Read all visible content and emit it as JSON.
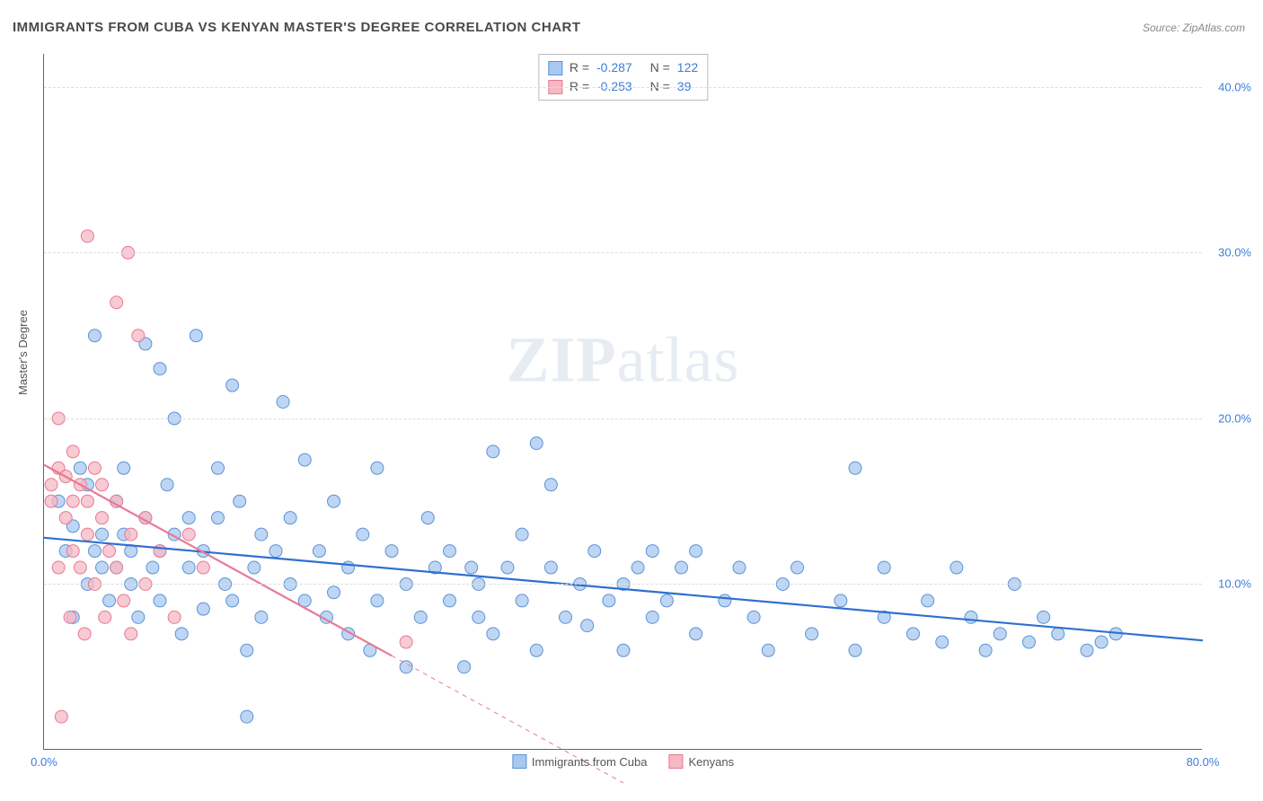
{
  "title": "IMMIGRANTS FROM CUBA VS KENYAN MASTER'S DEGREE CORRELATION CHART",
  "source_label": "Source:",
  "source_name": "ZipAtlas.com",
  "watermark_bold": "ZIP",
  "watermark_light": "atlas",
  "y_axis_title": "Master's Degree",
  "chart": {
    "type": "scatter",
    "xlim": [
      0,
      80
    ],
    "ylim": [
      0,
      42
    ],
    "x_ticks": [
      0,
      80
    ],
    "x_tick_labels": [
      "0.0%",
      "80.0%"
    ],
    "y_ticks": [
      10,
      20,
      30,
      40
    ],
    "y_tick_labels": [
      "10.0%",
      "20.0%",
      "30.0%",
      "40.0%"
    ],
    "background_color": "#ffffff",
    "grid_color": "#dddddd",
    "axis_color": "#666666",
    "tick_label_color": "#3b7dd8",
    "series": [
      {
        "name": "Immigrants from Cuba",
        "marker_fill": "#a8c8ef",
        "marker_stroke": "#5b93d8",
        "marker_opacity": 0.75,
        "marker_radius": 7,
        "line_color": "#2f6fd0",
        "line_width": 2.2,
        "R": "-0.287",
        "N": "122",
        "regression": {
          "x1": 0,
          "y1": 12.8,
          "x2": 80,
          "y2": 6.6
        },
        "points": [
          [
            1,
            15
          ],
          [
            1.5,
            12
          ],
          [
            2,
            8
          ],
          [
            2,
            13.5
          ],
          [
            2.5,
            17
          ],
          [
            3,
            10
          ],
          [
            3,
            16
          ],
          [
            3.5,
            12
          ],
          [
            3.5,
            25
          ],
          [
            4,
            11
          ],
          [
            4,
            13
          ],
          [
            4.5,
            9
          ],
          [
            5,
            11
          ],
          [
            5,
            15
          ],
          [
            5.5,
            17
          ],
          [
            5.5,
            13
          ],
          [
            6,
            10
          ],
          [
            6,
            12
          ],
          [
            6.5,
            8
          ],
          [
            7,
            14
          ],
          [
            7,
            24.5
          ],
          [
            7.5,
            11
          ],
          [
            8,
            9
          ],
          [
            8,
            12
          ],
          [
            8,
            23
          ],
          [
            8.5,
            16
          ],
          [
            9,
            13
          ],
          [
            9,
            20
          ],
          [
            9.5,
            7
          ],
          [
            10,
            14
          ],
          [
            10,
            11
          ],
          [
            10.5,
            25
          ],
          [
            11,
            8.5
          ],
          [
            11,
            12
          ],
          [
            12,
            14
          ],
          [
            12,
            17
          ],
          [
            12.5,
            10
          ],
          [
            13,
            22
          ],
          [
            13,
            9
          ],
          [
            13.5,
            15
          ],
          [
            14,
            2
          ],
          [
            14,
            6
          ],
          [
            14.5,
            11
          ],
          [
            15,
            8
          ],
          [
            15,
            13
          ],
          [
            16,
            12
          ],
          [
            16.5,
            21
          ],
          [
            17,
            10
          ],
          [
            17,
            14
          ],
          [
            18,
            17.5
          ],
          [
            18,
            9
          ],
          [
            19,
            12
          ],
          [
            19.5,
            8
          ],
          [
            20,
            9.5
          ],
          [
            20,
            15
          ],
          [
            21,
            7
          ],
          [
            21,
            11
          ],
          [
            22,
            13
          ],
          [
            22.5,
            6
          ],
          [
            23,
            17
          ],
          [
            23,
            9
          ],
          [
            24,
            12
          ],
          [
            25,
            5
          ],
          [
            25,
            10
          ],
          [
            26,
            8
          ],
          [
            26.5,
            14
          ],
          [
            27,
            11
          ],
          [
            28,
            9
          ],
          [
            28,
            12
          ],
          [
            29,
            5
          ],
          [
            29.5,
            11
          ],
          [
            30,
            8
          ],
          [
            30,
            10
          ],
          [
            31,
            18
          ],
          [
            31,
            7
          ],
          [
            32,
            11
          ],
          [
            33,
            13
          ],
          [
            33,
            9
          ],
          [
            34,
            18.5
          ],
          [
            34,
            6
          ],
          [
            35,
            11
          ],
          [
            35,
            16
          ],
          [
            36,
            8
          ],
          [
            37,
            10
          ],
          [
            37.5,
            7.5
          ],
          [
            38,
            12
          ],
          [
            39,
            9
          ],
          [
            40,
            10
          ],
          [
            40,
            6
          ],
          [
            41,
            11
          ],
          [
            42,
            8
          ],
          [
            42,
            12
          ],
          [
            43,
            9
          ],
          [
            44,
            11
          ],
          [
            45,
            7
          ],
          [
            45,
            12
          ],
          [
            47,
            9
          ],
          [
            48,
            11
          ],
          [
            49,
            8
          ],
          [
            50,
            6
          ],
          [
            51,
            10
          ],
          [
            52,
            11
          ],
          [
            53,
            7
          ],
          [
            55,
            9
          ],
          [
            56,
            17
          ],
          [
            56,
            6
          ],
          [
            58,
            8
          ],
          [
            58,
            11
          ],
          [
            60,
            7
          ],
          [
            61,
            9
          ],
          [
            62,
            6.5
          ],
          [
            63,
            11
          ],
          [
            64,
            8
          ],
          [
            65,
            6
          ],
          [
            66,
            7
          ],
          [
            67,
            10
          ],
          [
            68,
            6.5
          ],
          [
            69,
            8
          ],
          [
            70,
            7
          ],
          [
            72,
            6
          ],
          [
            73,
            6.5
          ],
          [
            74,
            7
          ]
        ]
      },
      {
        "name": "Kenyans",
        "marker_fill": "#f6b8c4",
        "marker_stroke": "#e77a94",
        "marker_opacity": 0.75,
        "marker_radius": 7,
        "line_color": "#e77a94",
        "line_width": 2.2,
        "line_dash_after_x": 24,
        "R": "-0.253",
        "N": "39",
        "regression": {
          "x1": 0,
          "y1": 17.2,
          "x2": 40,
          "y2": -2
        },
        "points": [
          [
            0.5,
            16
          ],
          [
            0.5,
            15
          ],
          [
            1,
            11
          ],
          [
            1,
            20
          ],
          [
            1,
            17
          ],
          [
            1.2,
            2
          ],
          [
            1.5,
            14
          ],
          [
            1.5,
            16.5
          ],
          [
            1.8,
            8
          ],
          [
            2,
            15
          ],
          [
            2,
            12
          ],
          [
            2,
            18
          ],
          [
            2.5,
            11
          ],
          [
            2.5,
            16
          ],
          [
            2.8,
            7
          ],
          [
            3,
            31
          ],
          [
            3,
            13
          ],
          [
            3,
            15
          ],
          [
            3.5,
            17
          ],
          [
            3.5,
            10
          ],
          [
            4,
            14
          ],
          [
            4,
            16
          ],
          [
            4.2,
            8
          ],
          [
            4.5,
            12
          ],
          [
            5,
            27
          ],
          [
            5,
            15
          ],
          [
            5,
            11
          ],
          [
            5.5,
            9
          ],
          [
            5.8,
            30
          ],
          [
            6,
            13
          ],
          [
            6,
            7
          ],
          [
            6.5,
            25
          ],
          [
            7,
            14
          ],
          [
            7,
            10
          ],
          [
            8,
            12
          ],
          [
            9,
            8
          ],
          [
            10,
            13
          ],
          [
            11,
            11
          ],
          [
            25,
            6.5
          ]
        ]
      }
    ]
  },
  "legend_bottom": [
    {
      "label": "Immigrants from Cuba",
      "fill": "#a8c8ef",
      "stroke": "#5b93d8"
    },
    {
      "label": "Kenyans",
      "fill": "#f6b8c4",
      "stroke": "#e77a94"
    }
  ],
  "stats_box": [
    {
      "fill": "#a8c8ef",
      "stroke": "#5b93d8",
      "r_label": "R =",
      "r_val": "-0.287",
      "n_label": "N =",
      "n_val": "122"
    },
    {
      "fill": "#f6b8c4",
      "stroke": "#e77a94",
      "r_label": "R =",
      "r_val": "-0.253",
      "n_label": "N =",
      "n_val": "39"
    }
  ]
}
